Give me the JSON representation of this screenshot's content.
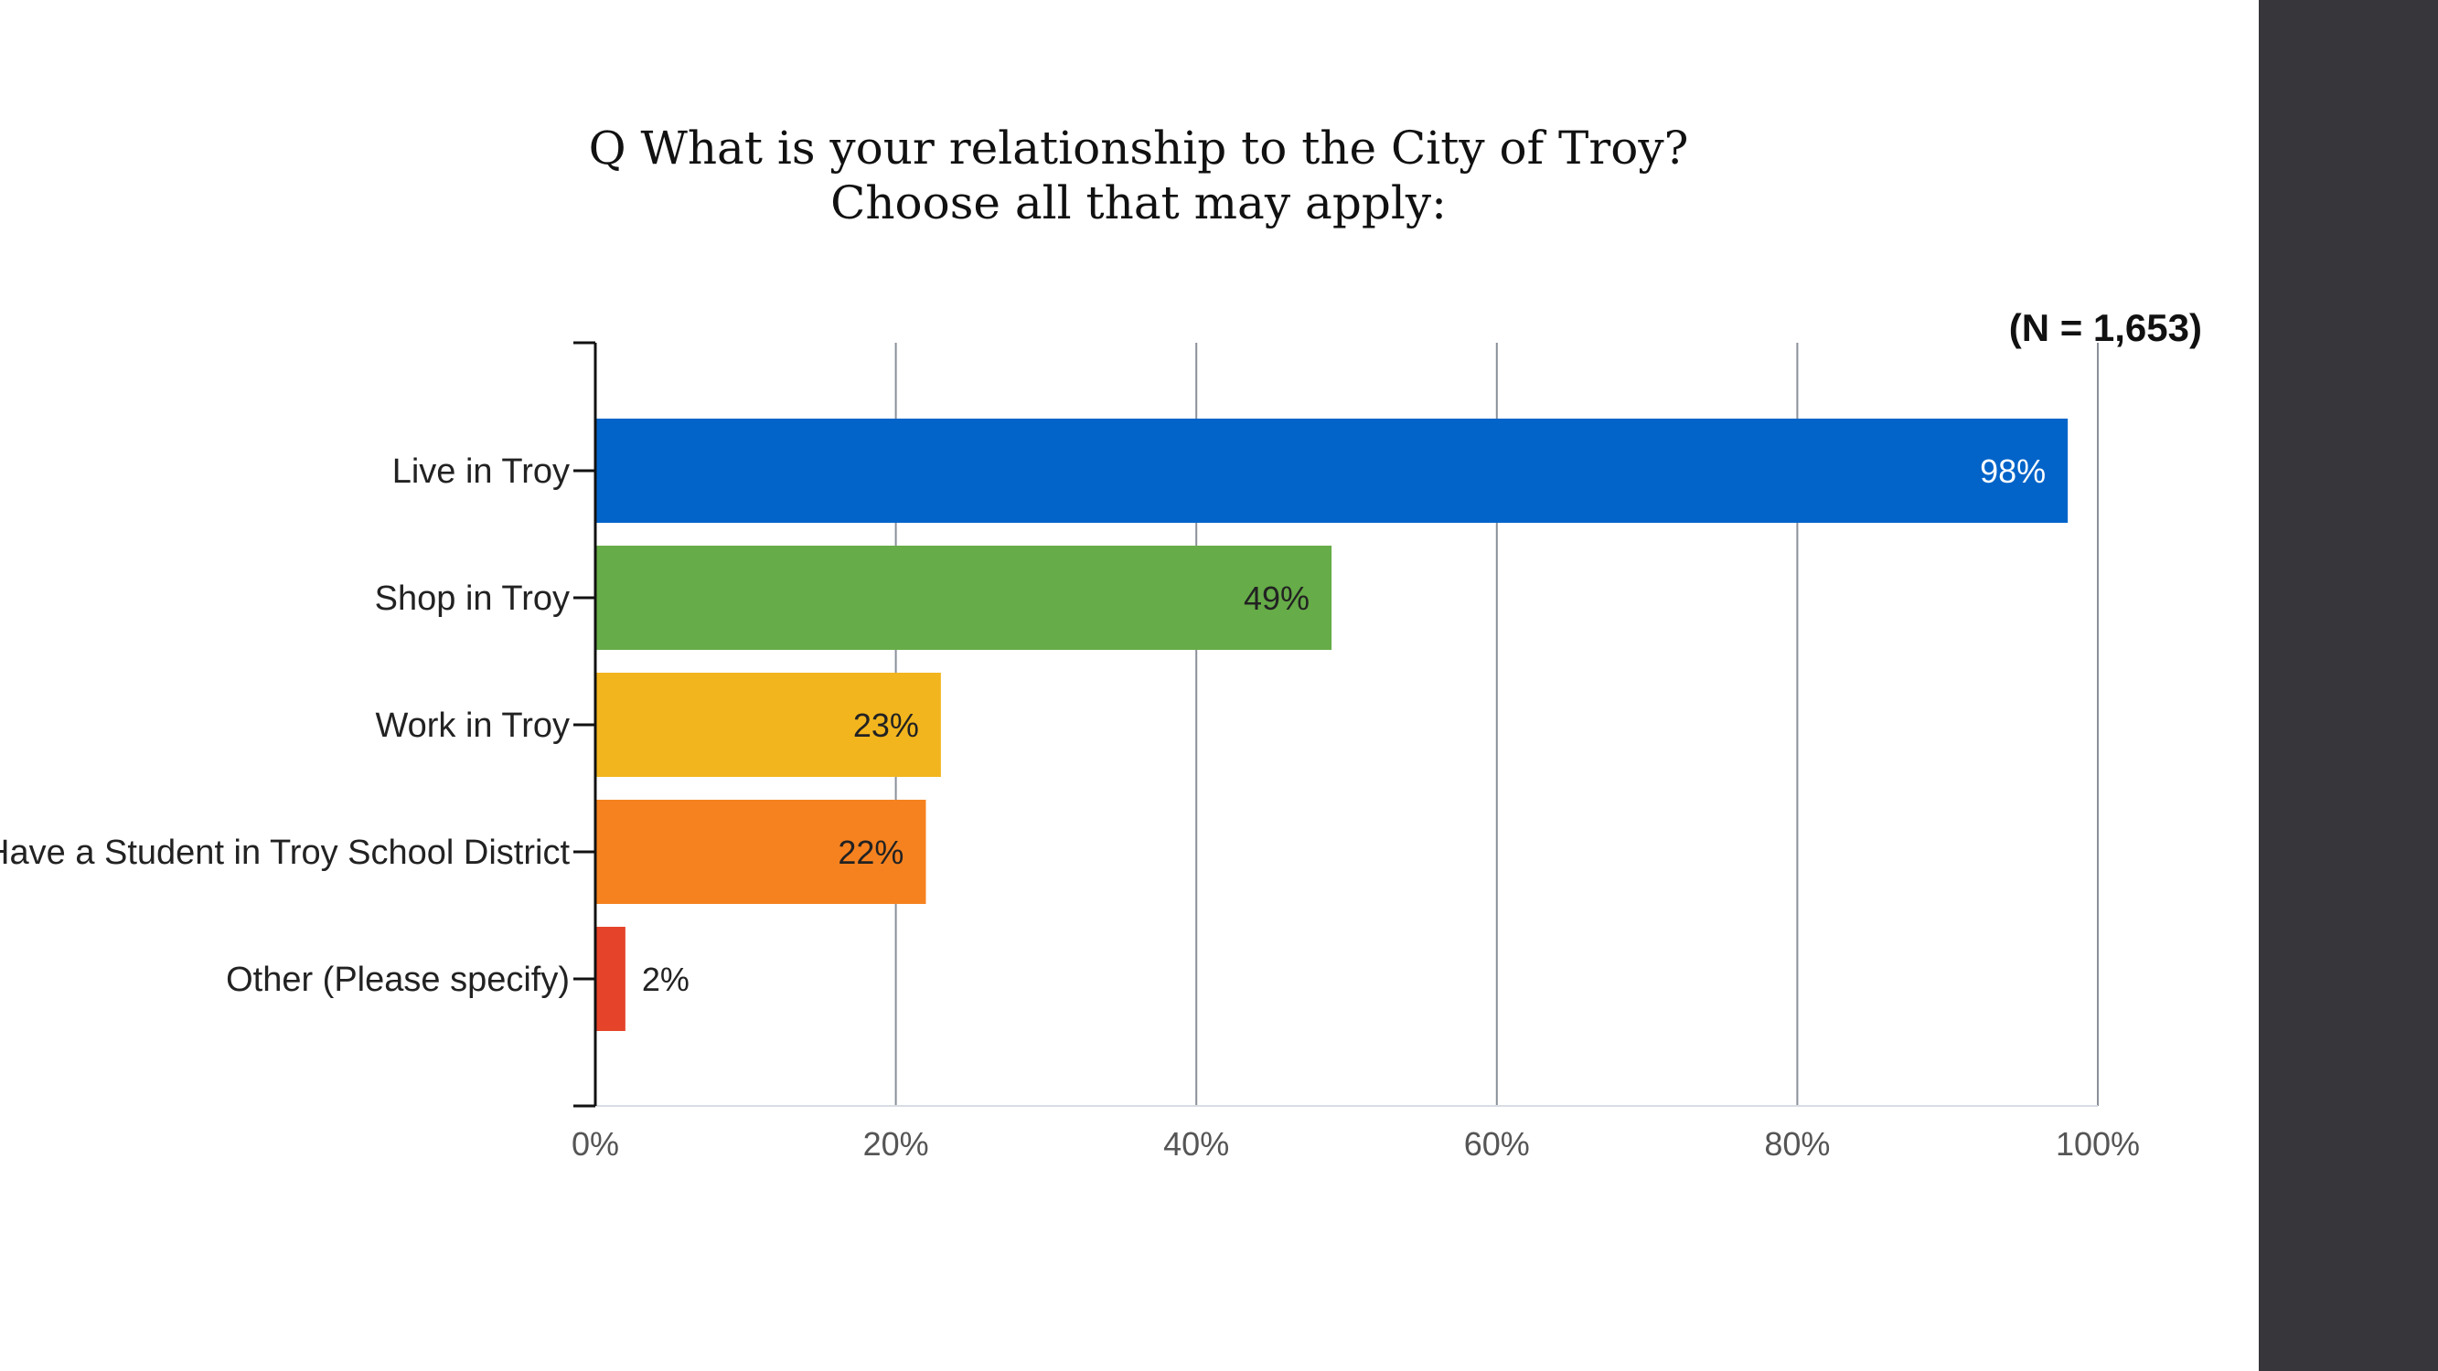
{
  "title_lines": [
    "Q What is your relationship to the City of Troy?",
    "Choose all that may apply:"
  ],
  "chart_data": {
    "type": "bar",
    "orientation": "horizontal",
    "categories": [
      "Live in Troy",
      "Shop in Troy",
      "Work in Troy",
      "Have a Student in Troy School District",
      "Other (Please specify)"
    ],
    "values": [
      98,
      49,
      23,
      22,
      2
    ],
    "value_labels": [
      "98%",
      "49%",
      "23%",
      "22%",
      "2%"
    ],
    "colors": [
      "#0264c9",
      "#66ac48",
      "#f2b51e",
      "#f5821f",
      "#e5442a"
    ],
    "label_colors": [
      "#ffffff",
      "#222222",
      "#222222",
      "#222222",
      "#222222"
    ],
    "xlim": [
      0,
      100
    ],
    "ticks": [
      0,
      20,
      40,
      60,
      80,
      100
    ],
    "tick_labels": [
      "0%",
      "20%",
      "40%",
      "60%",
      "80%",
      "100%"
    ],
    "grid": true,
    "note": "(N = 1,653)"
  }
}
